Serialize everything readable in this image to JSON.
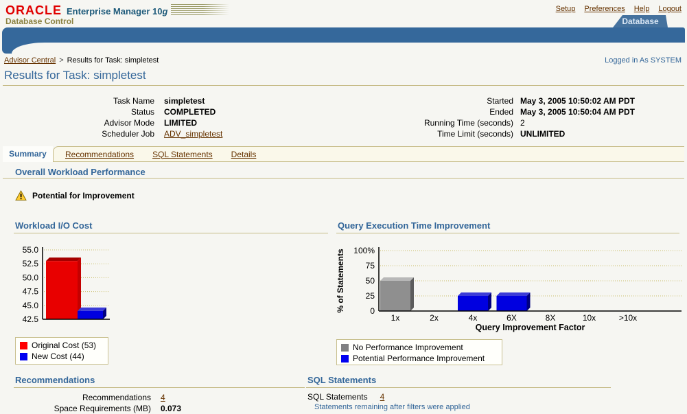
{
  "branding": {
    "logo": "ORACLE",
    "product": "Enterprise Manager 10",
    "product_g": "g",
    "subtitle": "Database Control"
  },
  "header": {
    "links": [
      "Setup",
      "Preferences",
      "Help",
      "Logout"
    ],
    "tab": "Database",
    "logged_in": "Logged in As SYSTEM"
  },
  "breadcrumb": {
    "parent": "Advisor Central",
    "separator": ">",
    "current": "Results for Task: simpletest"
  },
  "page_title": "Results for Task: simpletest",
  "task_info": {
    "left": [
      {
        "label": "Task Name",
        "value": "simpletest"
      },
      {
        "label": "Status",
        "value": "COMPLETED"
      },
      {
        "label": "Advisor Mode",
        "value": "LIMITED"
      },
      {
        "label": "Scheduler Job",
        "value": "ADV_simpletest"
      }
    ],
    "right": [
      {
        "label": "Started",
        "value": "May 3, 2005 10:50:02 AM PDT"
      },
      {
        "label": "Ended",
        "value": "May 3, 2005 10:50:04 AM PDT"
      },
      {
        "label": "Running Time (seconds)",
        "value": "2"
      },
      {
        "label": "Time Limit (seconds)",
        "value": "UNLIMITED"
      }
    ]
  },
  "tabs": {
    "items": [
      "Summary",
      "Recommendations",
      "SQL Statements",
      "Details"
    ],
    "active": "Summary"
  },
  "summary": {
    "section_title": "Overall Workload Performance",
    "warning": "Potential for Improvement",
    "recommendations": {
      "title": "Recommendations",
      "rows": [
        {
          "label": "Recommendations",
          "value": "4"
        },
        {
          "label": "Space Requirements (MB)",
          "value": "0.073"
        }
      ]
    },
    "sql": {
      "title": "SQL Statements",
      "label": "SQL Statements",
      "value": "4",
      "note": "Statements remaining after filters were applied"
    }
  },
  "chart_data": [
    {
      "type": "bar",
      "title": "Workload I/O Cost",
      "ylim": [
        42.5,
        55.0
      ],
      "grid": true,
      "yticks": [
        {
          "value": 55.0,
          "label": "55.0"
        },
        {
          "value": 52.5,
          "label": "52.5"
        },
        {
          "value": 50.0,
          "label": "50.0"
        },
        {
          "value": 47.5,
          "label": "47.5"
        },
        {
          "value": 45.0,
          "label": "45.0"
        },
        {
          "value": 42.5,
          "label": "42.5"
        }
      ],
      "bars": [
        {
          "name": "Original Cost",
          "value": 53,
          "color": {
            "front": "#e80000",
            "top": "#a50000",
            "side": "#c40000"
          }
        },
        {
          "name": "New Cost",
          "value": 44,
          "color": {
            "front": "#0000e0",
            "top": "#3b3bd8",
            "side": "#000080"
          }
        }
      ],
      "legend": [
        {
          "label": "Original Cost (53)",
          "color": "#ff0000"
        },
        {
          "label": "New Cost (44)",
          "color": "#0000f0"
        }
      ]
    },
    {
      "type": "bar",
      "title": "Query Execution Time Improvement",
      "ylabel": "% of Statements",
      "xlabel": "Query Improvement Factor",
      "ylim": [
        0,
        100
      ],
      "grid": true,
      "yticks": [
        {
          "value": 100,
          "label": "100%"
        },
        {
          "value": 75,
          "label": "75"
        },
        {
          "value": 50,
          "label": "50"
        },
        {
          "value": 25,
          "label": "25"
        },
        {
          "value": 0,
          "label": "0"
        }
      ],
      "bars": [
        {
          "category": "1x",
          "value": 50,
          "color": {
            "front": "#8f8f8f",
            "top": "#b8b8b8",
            "side": "#5c5c5c"
          }
        },
        {
          "category": "2x",
          "value": 0,
          "color": null
        },
        {
          "category": "4x",
          "value": 25,
          "color": {
            "front": "#0000e0",
            "top": "#3b3bd8",
            "side": "#000080"
          }
        },
        {
          "category": "6X",
          "value": 25,
          "color": {
            "front": "#0000e0",
            "top": "#3b3bd8",
            "side": "#000080"
          }
        },
        {
          "category": "8X",
          "value": 0,
          "color": null
        },
        {
          "category": "10x",
          "value": 0,
          "color": null
        },
        {
          "category": ">10x",
          "value": 0,
          "color": null
        }
      ],
      "legend": [
        {
          "label": "No Performance Improvement",
          "color": "#808080"
        },
        {
          "label": "Potential Performance Improvement",
          "color": "#0000f0"
        }
      ]
    }
  ],
  "colors": {
    "accent_blue": "#336699",
    "link_brown": "#663300",
    "rule_tan": "#c5ba85",
    "banner_blue": "#35689b",
    "grid_olive": "#c9bd6a",
    "warning_yellow": "#ffcc33"
  }
}
